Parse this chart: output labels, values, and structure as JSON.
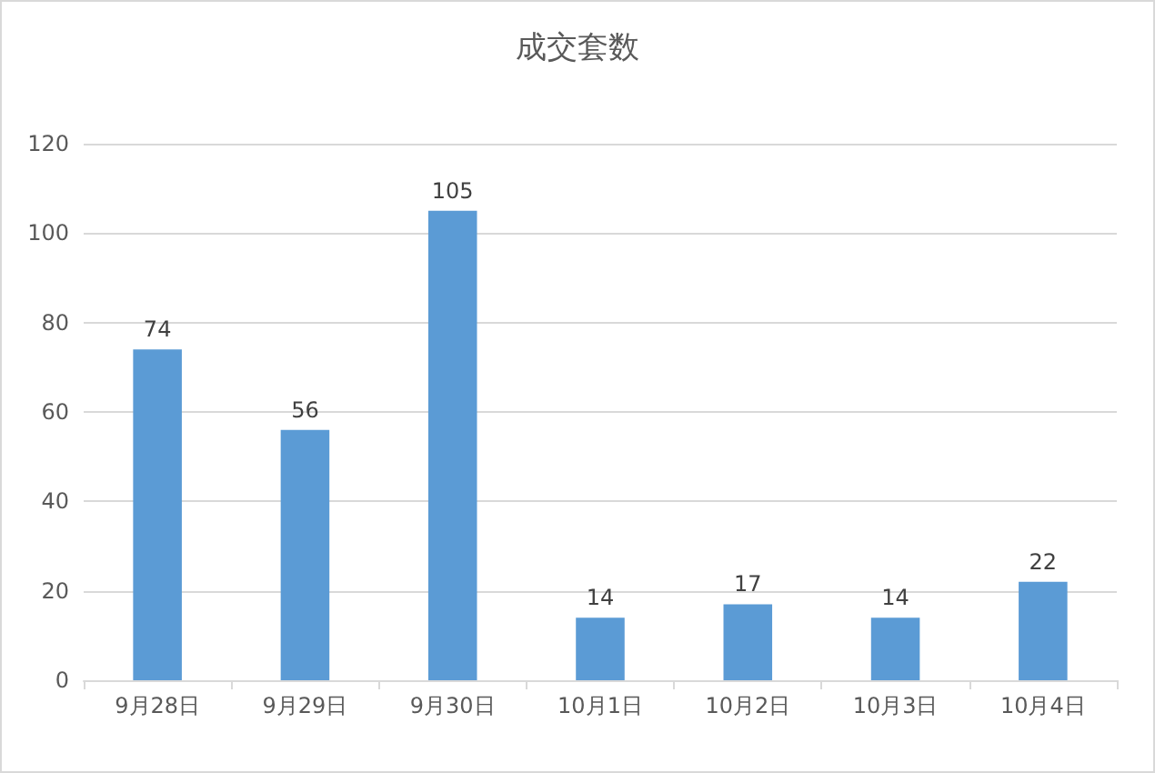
{
  "chart_data": {
    "type": "bar",
    "title": "成交套数",
    "categories": [
      "9月28日",
      "9月29日",
      "9月30日",
      "10月1日",
      "10月2日",
      "10月3日",
      "10月4日"
    ],
    "values": [
      74,
      56,
      105,
      14,
      17,
      14,
      22
    ],
    "color": "#5b9bd5",
    "ylim": [
      0,
      120
    ],
    "yticks": [
      0,
      20,
      40,
      60,
      80,
      100,
      120
    ],
    "grid": "y",
    "data_labels": true
  }
}
